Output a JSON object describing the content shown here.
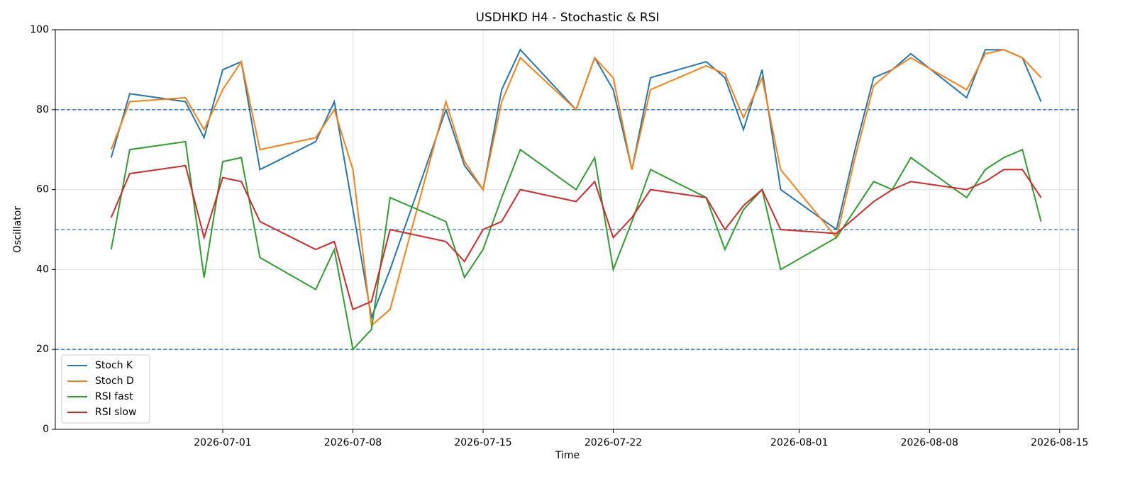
{
  "chart_data": {
    "type": "line",
    "title": "USDHKD H4 - Stochastic & RSI",
    "x_label": "Time",
    "y_label": "Oscillator",
    "x": [
      "2026-06-25",
      "2026-06-26",
      "2026-06-29",
      "2026-06-30",
      "2026-07-01",
      "2026-07-02",
      "2026-07-03",
      "2026-07-06",
      "2026-07-07",
      "2026-07-08",
      "2026-07-09",
      "2026-07-10",
      "2026-07-13",
      "2026-07-14",
      "2026-07-15",
      "2026-07-16",
      "2026-07-17",
      "2026-07-20",
      "2026-07-21",
      "2026-07-22",
      "2026-07-23",
      "2026-07-24",
      "2026-07-27",
      "2026-07-28",
      "2026-07-29",
      "2026-07-30",
      "2026-07-31",
      "2026-08-03",
      "2026-08-04",
      "2026-08-05",
      "2026-08-06",
      "2026-08-07",
      "2026-08-10",
      "2026-08-11",
      "2026-08-12",
      "2026-08-13",
      "2026-08-14"
    ],
    "series": [
      {
        "name": "Stoch K",
        "color": "#1f77b4",
        "values": [
          68,
          84,
          82,
          73,
          90,
          92,
          65,
          72,
          82,
          55,
          28,
          40,
          80,
          66,
          60,
          85,
          95,
          80,
          93,
          85,
          65,
          88,
          92,
          88,
          75,
          90,
          60,
          50,
          70,
          88,
          90,
          94,
          83,
          95,
          95,
          93,
          82
        ]
      },
      {
        "name": "Stoch D",
        "color": "#ff7f0e",
        "values": [
          70,
          82,
          83,
          75,
          85,
          92,
          70,
          73,
          80,
          65,
          26,
          30,
          82,
          67,
          60,
          82,
          93,
          80,
          93,
          88,
          65,
          85,
          91,
          89,
          78,
          88,
          65,
          48,
          68,
          86,
          90,
          93,
          85,
          94,
          95,
          93,
          88
        ]
      },
      {
        "name": "RSI fast",
        "color": "#2ca02c",
        "values": [
          45,
          70,
          72,
          38,
          67,
          68,
          43,
          35,
          45,
          20,
          25,
          58,
          52,
          38,
          45,
          58,
          70,
          60,
          68,
          40,
          52,
          65,
          58,
          45,
          55,
          60,
          40,
          48,
          55,
          62,
          60,
          68,
          58,
          65,
          68,
          70,
          52
        ]
      },
      {
        "name": "RSI slow",
        "color": "#d62728",
        "values": [
          53,
          64,
          66,
          48,
          63,
          62,
          52,
          45,
          47,
          30,
          32,
          50,
          47,
          42,
          50,
          52,
          60,
          57,
          62,
          48,
          53,
          60,
          58,
          50,
          56,
          60,
          50,
          49,
          53,
          57,
          60,
          62,
          60,
          62,
          65,
          65,
          58
        ]
      }
    ],
    "hlines": [
      20,
      50,
      80
    ],
    "hline_color": "#1f77b4",
    "xlim": [
      "2026-06-22",
      "2026-08-16"
    ],
    "xticks": [
      "2026-07-01",
      "2026-07-08",
      "2026-07-15",
      "2026-07-22",
      "2026-08-01",
      "2026-08-08",
      "2026-08-15"
    ],
    "ylim": [
      0,
      100
    ],
    "yticks": [
      0,
      20,
      40,
      60,
      80,
      100
    ],
    "grid": true,
    "legend": "lower left"
  }
}
